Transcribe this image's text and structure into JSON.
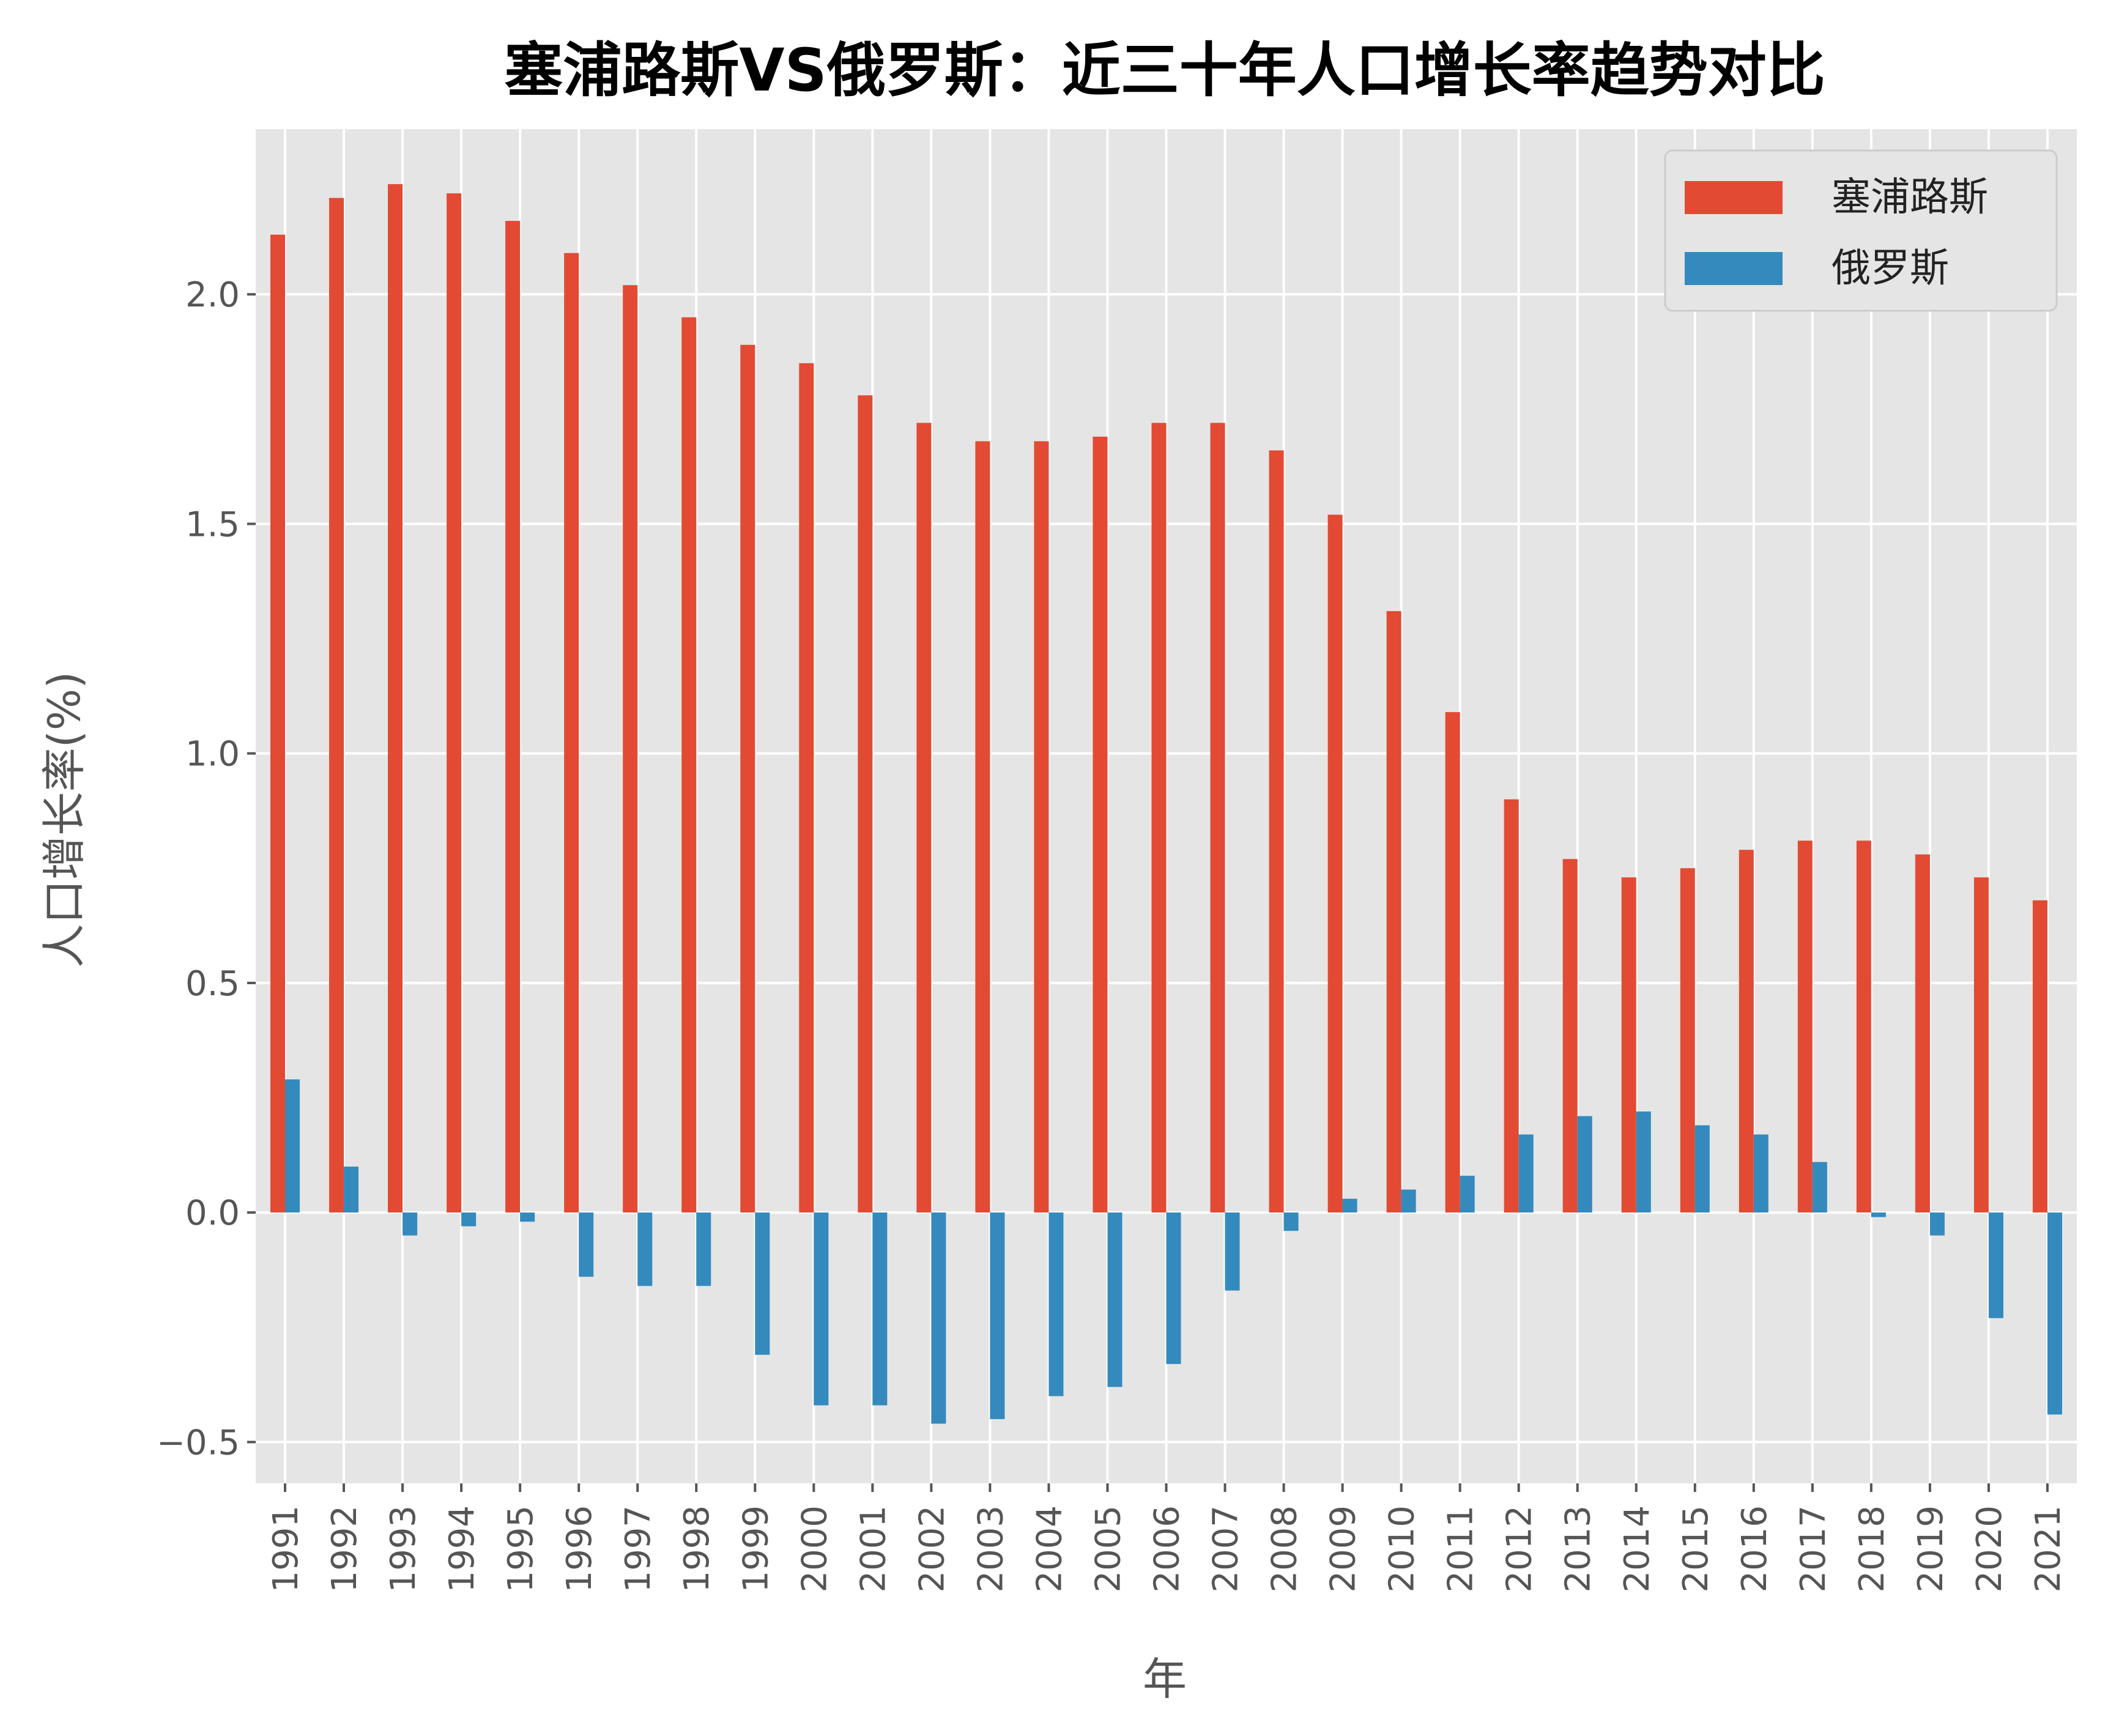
{
  "chart_data": {
    "type": "bar",
    "title": "塞浦路斯VS俄罗斯：近三十年人口增长率趋势对比",
    "xlabel": "年",
    "ylabel": "人口增长率(%)",
    "categories": [
      "1991",
      "1992",
      "1993",
      "1994",
      "1995",
      "1996",
      "1997",
      "1998",
      "1999",
      "2000",
      "2001",
      "2002",
      "2003",
      "2004",
      "2005",
      "2006",
      "2007",
      "2008",
      "2009",
      "2010",
      "2011",
      "2012",
      "2013",
      "2014",
      "2015",
      "2016",
      "2017",
      "2018",
      "2019",
      "2020",
      "2021"
    ],
    "series": [
      {
        "name": "塞浦路斯",
        "color": "#E24A33",
        "values": [
          2.13,
          2.21,
          2.24,
          2.22,
          2.16,
          2.09,
          2.02,
          1.95,
          1.89,
          1.85,
          1.78,
          1.72,
          1.68,
          1.68,
          1.69,
          1.72,
          1.72,
          1.66,
          1.52,
          1.31,
          1.09,
          0.9,
          0.77,
          0.73,
          0.75,
          0.79,
          0.81,
          0.81,
          0.78,
          0.73,
          0.68
        ]
      },
      {
        "name": "俄罗斯",
        "color": "#348ABD",
        "values": [
          0.29,
          0.1,
          -0.05,
          -0.03,
          -0.02,
          -0.14,
          -0.16,
          -0.16,
          -0.31,
          -0.42,
          -0.42,
          -0.46,
          -0.45,
          -0.4,
          -0.38,
          -0.33,
          -0.17,
          -0.04,
          0.03,
          0.05,
          0.08,
          0.17,
          0.21,
          0.22,
          0.19,
          0.17,
          0.11,
          -0.01,
          -0.05,
          -0.23,
          -0.44
        ]
      }
    ],
    "yticks": [
      -0.5,
      0.0,
      0.5,
      1.0,
      1.5,
      2.0
    ],
    "ytick_labels": [
      "−0.5",
      "0.0",
      "0.5",
      "1.0",
      "1.5",
      "2.0"
    ],
    "ylim": [
      -0.59,
      2.36
    ],
    "grid": true,
    "legend_position": "top-right",
    "background_color": "#E5E5E5"
  }
}
